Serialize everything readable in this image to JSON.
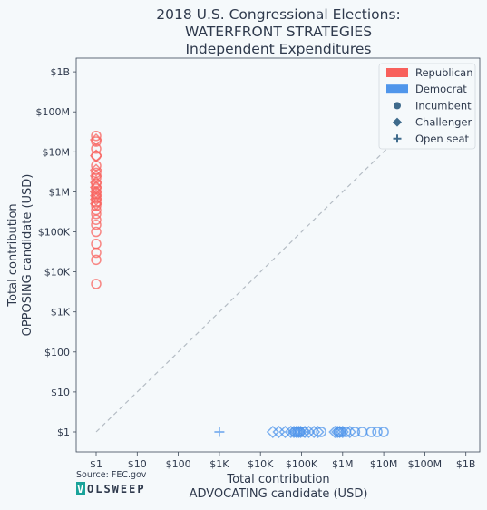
{
  "chart_data": {
    "type": "scatter",
    "title_lines": [
      "2018 U.S. Congressional Elections:",
      "WATERFRONT STRATEGIES",
      "Independent Expenditures"
    ],
    "xlabel_lines": [
      "Total contribution",
      "ADVOCATING candidate (USD)"
    ],
    "ylabel_lines": [
      "Total contribution",
      "OPPOSING candidate (USD)"
    ],
    "scale": "log10",
    "x_range": [
      1,
      1000000000
    ],
    "y_range": [
      1,
      1000000000
    ],
    "x_ticks": [
      {
        "value": 1,
        "label": "$1"
      },
      {
        "value": 10,
        "label": "$10"
      },
      {
        "value": 100,
        "label": "$100"
      },
      {
        "value": 1000,
        "label": "$1K"
      },
      {
        "value": 10000,
        "label": "$10K"
      },
      {
        "value": 100000,
        "label": "$100K"
      },
      {
        "value": 1000000,
        "label": "$1M"
      },
      {
        "value": 10000000,
        "label": "$10M"
      },
      {
        "value": 100000000,
        "label": "$100M"
      },
      {
        "value": 1000000000,
        "label": "$1B"
      }
    ],
    "y_ticks": [
      {
        "value": 1,
        "label": "$1"
      },
      {
        "value": 10,
        "label": "$10"
      },
      {
        "value": 100,
        "label": "$100"
      },
      {
        "value": 1000,
        "label": "$1K"
      },
      {
        "value": 10000,
        "label": "$10K"
      },
      {
        "value": 100000,
        "label": "$100K"
      },
      {
        "value": 1000000,
        "label": "$1M"
      },
      {
        "value": 10000000,
        "label": "$10M"
      },
      {
        "value": 100000000,
        "label": "$100M"
      },
      {
        "value": 1000000000,
        "label": "$1B"
      }
    ],
    "grid": false,
    "diagonal_reference_line": true,
    "legend_position": "top-right",
    "legend": [
      {
        "label": "Republican",
        "kind": "party",
        "color": "#f8605c"
      },
      {
        "label": "Democrat",
        "kind": "party",
        "color": "#5096eb"
      },
      {
        "label": "Incumbent",
        "kind": "marker",
        "shape": "circle"
      },
      {
        "label": "Challenger",
        "kind": "marker",
        "shape": "diamond"
      },
      {
        "label": "Open seat",
        "kind": "marker",
        "shape": "plus"
      }
    ],
    "series": [
      {
        "party": "Republican",
        "color": "#f8605c",
        "points": [
          {
            "x": 1,
            "y": 5000,
            "shape": "circle"
          },
          {
            "x": 1,
            "y": 20000,
            "shape": "circle"
          },
          {
            "x": 1,
            "y": 30000,
            "shape": "circle"
          },
          {
            "x": 1,
            "y": 50000,
            "shape": "circle"
          },
          {
            "x": 1,
            "y": 100000,
            "shape": "circle"
          },
          {
            "x": 1,
            "y": 150000,
            "shape": "circle"
          },
          {
            "x": 1,
            "y": 200000,
            "shape": "circle"
          },
          {
            "x": 1,
            "y": 280000,
            "shape": "circle"
          },
          {
            "x": 1,
            "y": 350000,
            "shape": "circle"
          },
          {
            "x": 1,
            "y": 450000,
            "shape": "circle"
          },
          {
            "x": 1,
            "y": 550000,
            "shape": "circle"
          },
          {
            "x": 1,
            "y": 700000,
            "shape": "circle"
          },
          {
            "x": 1,
            "y": 900000,
            "shape": "circle"
          },
          {
            "x": 1,
            "y": 1200000,
            "shape": "circle"
          },
          {
            "x": 1,
            "y": 1600000,
            "shape": "circle"
          },
          {
            "x": 1,
            "y": 2200000,
            "shape": "circle"
          },
          {
            "x": 1,
            "y": 3000000,
            "shape": "circle"
          },
          {
            "x": 1,
            "y": 4500000,
            "shape": "circle"
          },
          {
            "x": 1,
            "y": 8000000,
            "shape": "circle"
          },
          {
            "x": 1,
            "y": 12000000,
            "shape": "circle"
          },
          {
            "x": 1,
            "y": 18000000,
            "shape": "circle"
          },
          {
            "x": 1,
            "y": 25000000,
            "shape": "circle"
          },
          {
            "x": 1,
            "y": 500000,
            "shape": "diamond"
          },
          {
            "x": 1,
            "y": 650000,
            "shape": "diamond"
          },
          {
            "x": 1,
            "y": 800000,
            "shape": "diamond"
          },
          {
            "x": 1,
            "y": 1000000,
            "shape": "diamond"
          },
          {
            "x": 1,
            "y": 1300000,
            "shape": "diamond"
          },
          {
            "x": 1,
            "y": 1700000,
            "shape": "diamond"
          },
          {
            "x": 1,
            "y": 2500000,
            "shape": "diamond"
          },
          {
            "x": 1,
            "y": 3500000,
            "shape": "diamond"
          },
          {
            "x": 1,
            "y": 8000000,
            "shape": "diamond"
          },
          {
            "x": 1,
            "y": 20000000,
            "shape": "diamond"
          }
        ]
      },
      {
        "party": "Democrat",
        "color": "#5096eb",
        "points": [
          {
            "x": 1000,
            "y": 1,
            "shape": "plus"
          },
          {
            "x": 20000,
            "y": 1,
            "shape": "diamond"
          },
          {
            "x": 28000,
            "y": 1,
            "shape": "diamond"
          },
          {
            "x": 40000,
            "y": 1,
            "shape": "diamond"
          },
          {
            "x": 55000,
            "y": 1,
            "shape": "diamond"
          },
          {
            "x": 65000,
            "y": 1,
            "shape": "diamond"
          },
          {
            "x": 75000,
            "y": 1,
            "shape": "diamond"
          },
          {
            "x": 85000,
            "y": 1,
            "shape": "diamond"
          },
          {
            "x": 95000,
            "y": 1,
            "shape": "diamond"
          },
          {
            "x": 120000,
            "y": 1,
            "shape": "diamond"
          },
          {
            "x": 150000,
            "y": 1,
            "shape": "diamond"
          },
          {
            "x": 200000,
            "y": 1,
            "shape": "diamond"
          },
          {
            "x": 250000,
            "y": 1,
            "shape": "diamond"
          },
          {
            "x": 650000,
            "y": 1,
            "shape": "diamond"
          },
          {
            "x": 750000,
            "y": 1,
            "shape": "diamond"
          },
          {
            "x": 850000,
            "y": 1,
            "shape": "diamond"
          },
          {
            "x": 1000000,
            "y": 1,
            "shape": "diamond"
          },
          {
            "x": 1500000,
            "y": 1,
            "shape": "diamond"
          },
          {
            "x": 70000,
            "y": 1,
            "shape": "circle"
          },
          {
            "x": 80000,
            "y": 1,
            "shape": "circle"
          },
          {
            "x": 90000,
            "y": 1,
            "shape": "circle"
          },
          {
            "x": 110000,
            "y": 1,
            "shape": "circle"
          },
          {
            "x": 300000,
            "y": 1,
            "shape": "circle"
          },
          {
            "x": 800000,
            "y": 1,
            "shape": "circle"
          },
          {
            "x": 900000,
            "y": 1,
            "shape": "circle"
          },
          {
            "x": 1200000,
            "y": 1,
            "shape": "circle"
          },
          {
            "x": 2000000,
            "y": 1,
            "shape": "circle"
          },
          {
            "x": 3000000,
            "y": 1,
            "shape": "circle"
          },
          {
            "x": 5000000,
            "y": 1,
            "shape": "circle"
          },
          {
            "x": 7000000,
            "y": 1,
            "shape": "circle"
          },
          {
            "x": 10000000,
            "y": 1,
            "shape": "circle"
          }
        ]
      }
    ]
  },
  "footer": {
    "source": "Source: FEC.gov",
    "brand_first": "V",
    "brand_rest": "OLSWEEP"
  }
}
